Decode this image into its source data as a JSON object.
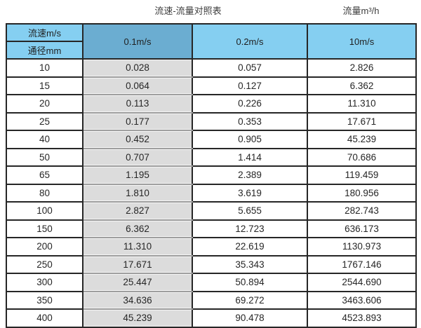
{
  "header": {
    "title": "流速-流量对照表",
    "unit_label": "流量m³/h"
  },
  "table": {
    "corner_top": "流速m/s",
    "corner_bottom": "通径mm",
    "velocity_columns": [
      "0.1m/s",
      "0.2m/s",
      "10m/s"
    ],
    "rows": [
      {
        "diameter": "10",
        "values": [
          "0.028",
          "0.057",
          "2.826"
        ]
      },
      {
        "diameter": "15",
        "values": [
          "0.064",
          "0.127",
          "6.362"
        ]
      },
      {
        "diameter": "20",
        "values": [
          "0.113",
          "0.226",
          "11.310"
        ]
      },
      {
        "diameter": "25",
        "values": [
          "0.177",
          "0.353",
          "17.671"
        ]
      },
      {
        "diameter": "40",
        "values": [
          "0.452",
          "0.905",
          "45.239"
        ]
      },
      {
        "diameter": "50",
        "values": [
          "0.707",
          "1.414",
          "70.686"
        ]
      },
      {
        "diameter": "65",
        "values": [
          "1.195",
          "2.389",
          "119.459"
        ]
      },
      {
        "diameter": "80",
        "values": [
          "1.810",
          "3.619",
          "180.956"
        ]
      },
      {
        "diameter": "100",
        "values": [
          "2.827",
          "5.655",
          "282.743"
        ]
      },
      {
        "diameter": "150",
        "values": [
          "6.362",
          "12.723",
          "636.173"
        ]
      },
      {
        "diameter": "200",
        "values": [
          "11.310",
          "22.619",
          "1130.973"
        ]
      },
      {
        "diameter": "250",
        "values": [
          "17.671",
          "35.343",
          "1767.146"
        ]
      },
      {
        "diameter": "300",
        "values": [
          "25.447",
          "50.894",
          "2544.690"
        ]
      },
      {
        "diameter": "350",
        "values": [
          "34.636",
          "69.272",
          "3463.606"
        ]
      },
      {
        "diameter": "400",
        "values": [
          "45.239",
          "90.478",
          "4523.893"
        ]
      }
    ]
  },
  "colors": {
    "header_light_blue": "#85cff1",
    "header_dark_blue": "#6badd1",
    "highlight_gray": "#dcdcdc",
    "border_dark": "#262626"
  },
  "chart_data": {
    "type": "table",
    "title": "流速-流量对照表",
    "unit_label": "流量m³/h",
    "row_axis_label": "通径mm",
    "column_axis_label": "流速m/s",
    "columns": [
      "0.1m/s",
      "0.2m/s",
      "10m/s"
    ],
    "diameters_mm": [
      10,
      15,
      20,
      25,
      40,
      50,
      65,
      80,
      100,
      150,
      200,
      250,
      300,
      350,
      400
    ],
    "series": [
      {
        "name": "0.1m/s",
        "values": [
          0.028,
          0.064,
          0.113,
          0.177,
          0.452,
          0.707,
          1.195,
          1.81,
          2.827,
          6.362,
          11.31,
          17.671,
          25.447,
          34.636,
          45.239
        ]
      },
      {
        "name": "0.2m/s",
        "values": [
          0.057,
          0.127,
          0.226,
          0.353,
          0.905,
          1.414,
          2.389,
          3.619,
          5.655,
          12.723,
          22.619,
          35.343,
          50.894,
          69.272,
          90.478
        ]
      },
      {
        "name": "10m/s",
        "values": [
          2.826,
          6.362,
          11.31,
          17.671,
          45.239,
          70.686,
          119.459,
          180.956,
          282.743,
          636.173,
          1130.973,
          1767.146,
          2544.69,
          3463.606,
          4523.893
        ]
      }
    ]
  }
}
